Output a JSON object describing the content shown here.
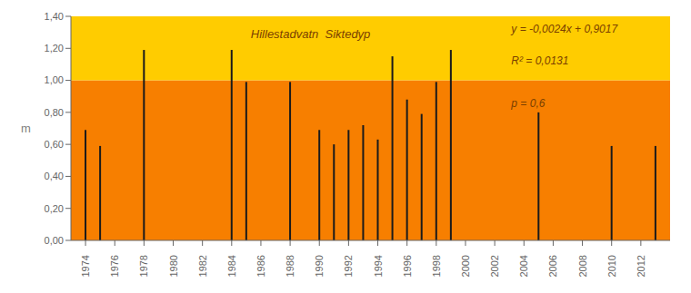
{
  "chart_data": {
    "type": "bar",
    "title": "Hillestadvatn  Siktedyp",
    "ylabel": "m",
    "x": [
      1974,
      1975,
      1978,
      1984,
      1985,
      1988,
      1990,
      1991,
      1992,
      1993,
      1994,
      1995,
      1996,
      1997,
      1998,
      1999,
      2005,
      2010,
      2013
    ],
    "values": [
      0.69,
      0.59,
      1.19,
      1.19,
      0.99,
      0.99,
      0.69,
      0.6,
      0.69,
      0.72,
      0.63,
      1.15,
      0.88,
      0.79,
      0.99,
      1.19,
      0.8,
      0.59,
      0.59
    ],
    "color": "#1a1a1a",
    "xlim": [
      1973,
      2014
    ],
    "xticks": [
      1974,
      1976,
      1978,
      1980,
      1982,
      1984,
      1986,
      1988,
      1990,
      1992,
      1994,
      1996,
      1998,
      2000,
      2002,
      2004,
      2006,
      2008,
      2010,
      2012
    ],
    "ylim": [
      0.0,
      1.4
    ],
    "yticks": [
      {
        "value": 0.0,
        "label": "0,00"
      },
      {
        "value": 0.2,
        "label": "0,20"
      },
      {
        "value": 0.4,
        "label": "0,40"
      },
      {
        "value": 0.6,
        "label": "0,60"
      },
      {
        "value": 0.8,
        "label": "0,80"
      },
      {
        "value": 1.0,
        "label": "1,00"
      },
      {
        "value": 1.2,
        "label": "1,20"
      },
      {
        "value": 1.4,
        "label": "1,40"
      }
    ],
    "bands": [
      {
        "from": 0.0,
        "to": 1.0,
        "color": "#f77f00"
      },
      {
        "from": 1.0,
        "to": 1.4,
        "color": "#ffcc00"
      }
    ],
    "annotations": [
      "y = -0,0024x + 0,9017",
      "R² = 0,0131",
      "p = 0,6"
    ],
    "annotation_color": "#7b3f00",
    "title_color": "#7b3f00",
    "grid": false
  }
}
